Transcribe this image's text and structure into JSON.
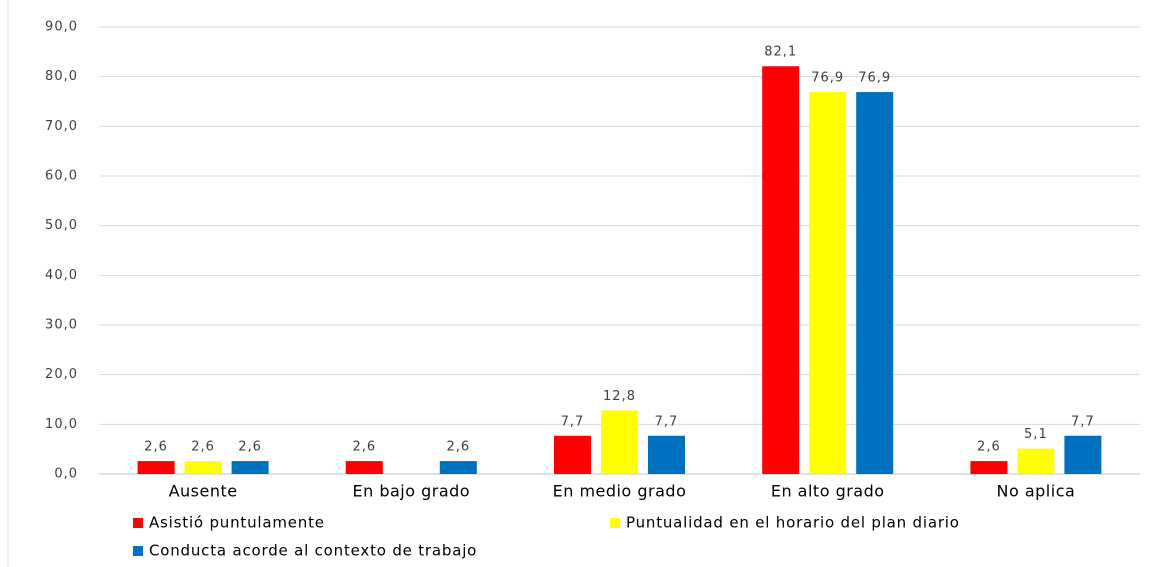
{
  "chart_data": {
    "type": "bar",
    "categories": [
      "Ausente",
      "En bajo grado",
      "En medio grado",
      "En alto grado",
      "No aplica"
    ],
    "series": [
      {
        "name": "Asistió puntulamente",
        "color": "#ff0000",
        "values": [
          2.6,
          2.6,
          7.7,
          82.1,
          2.6
        ],
        "value_labels": [
          "2,6",
          "2,6",
          "7,7",
          "82,1",
          "2,6"
        ]
      },
      {
        "name": "Puntualidad en el horario del plan diario",
        "color": "#ffff00",
        "values": [
          2.6,
          null,
          12.8,
          76.9,
          5.1
        ],
        "value_labels": [
          "2,6",
          null,
          "12,8",
          "76,9",
          "5,1"
        ]
      },
      {
        "name": "Conducta acorde al contexto de trabajo",
        "color": "#0070c0",
        "values": [
          2.6,
          2.6,
          7.7,
          76.9,
          7.7
        ],
        "value_labels": [
          "2,6",
          "2,6",
          "7,7",
          "76,9",
          "7,7"
        ]
      }
    ],
    "ylim": [
      0,
      90
    ],
    "yticks": [
      {
        "value": 0,
        "label": "0,0"
      },
      {
        "value": 10,
        "label": "10,0"
      },
      {
        "value": 20,
        "label": "20,0"
      },
      {
        "value": 30,
        "label": "30,0"
      },
      {
        "value": 40,
        "label": "40,0"
      },
      {
        "value": 50,
        "label": "50,0"
      },
      {
        "value": 60,
        "label": "60,0"
      },
      {
        "value": 70,
        "label": "70,0"
      },
      {
        "value": 80,
        "label": "80,0"
      },
      {
        "value": 90,
        "label": "90,0"
      }
    ],
    "grid": true,
    "legend": "bottom"
  }
}
